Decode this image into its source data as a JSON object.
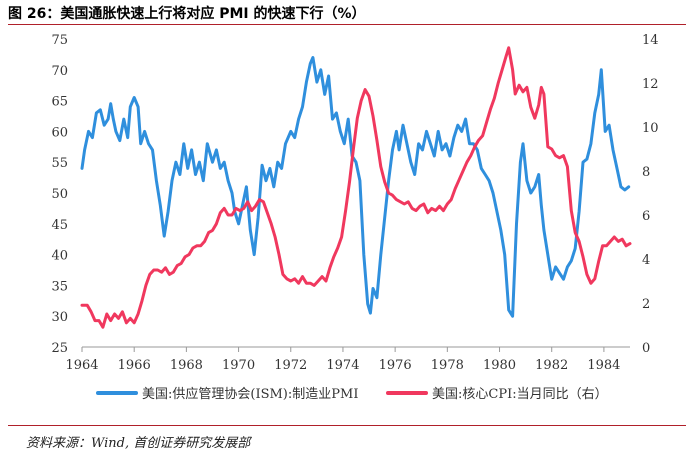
{
  "figure": {
    "title": "图 26：美国通胀快速上行将对应 PMI 的快速下行（%）",
    "source": "资料来源：Wind, 首创证券研究发展部"
  },
  "colors": {
    "pmi": "#2f8fdd",
    "cpi": "#f0385e",
    "axis": "#999999",
    "title_rule": "#b0202a"
  },
  "chart_data": {
    "type": "line",
    "title": "",
    "xlabel": "",
    "x_ticks": [
      "1964",
      "1966",
      "1968",
      "1970",
      "1972",
      "1974",
      "1976",
      "1978",
      "1980",
      "1982",
      "1984"
    ],
    "xlim": [
      1964,
      1985
    ],
    "left_axis": {
      "ylim": [
        25,
        75
      ],
      "ticks": [
        "25",
        "30",
        "35",
        "40",
        "45",
        "50",
        "55",
        "60",
        "65",
        "70",
        "75"
      ]
    },
    "right_axis": {
      "ylim": [
        0,
        14
      ],
      "ticks": [
        "0",
        "2",
        "4",
        "6",
        "8",
        "10",
        "12",
        "14"
      ]
    },
    "legend_position": "bottom",
    "series": [
      {
        "name": "美国:供应管理协会(ISM):制造业PMI",
        "axis": "left",
        "points": [
          [
            1964.0,
            54
          ],
          [
            1964.1,
            57
          ],
          [
            1964.25,
            60
          ],
          [
            1964.4,
            59
          ],
          [
            1964.55,
            63
          ],
          [
            1964.7,
            63.5
          ],
          [
            1964.85,
            61
          ],
          [
            1965.0,
            62
          ],
          [
            1965.1,
            64.5
          ],
          [
            1965.2,
            62
          ],
          [
            1965.3,
            60
          ],
          [
            1965.45,
            58.5
          ],
          [
            1965.6,
            62
          ],
          [
            1965.75,
            59
          ],
          [
            1965.85,
            64
          ],
          [
            1966.0,
            65.5
          ],
          [
            1966.15,
            64
          ],
          [
            1966.25,
            58
          ],
          [
            1966.4,
            60
          ],
          [
            1966.55,
            58
          ],
          [
            1966.7,
            57
          ],
          [
            1966.85,
            52
          ],
          [
            1967.0,
            48
          ],
          [
            1967.15,
            43
          ],
          [
            1967.3,
            47
          ],
          [
            1967.45,
            52
          ],
          [
            1967.6,
            55
          ],
          [
            1967.75,
            53
          ],
          [
            1967.9,
            58
          ],
          [
            1968.05,
            54
          ],
          [
            1968.2,
            57
          ],
          [
            1968.35,
            53
          ],
          [
            1968.5,
            55
          ],
          [
            1968.65,
            52
          ],
          [
            1968.8,
            58
          ],
          [
            1969.0,
            55
          ],
          [
            1969.15,
            57
          ],
          [
            1969.3,
            54
          ],
          [
            1969.45,
            55
          ],
          [
            1969.6,
            52
          ],
          [
            1969.75,
            50
          ],
          [
            1969.85,
            47
          ],
          [
            1970.0,
            45
          ],
          [
            1970.15,
            48
          ],
          [
            1970.3,
            51
          ],
          [
            1970.45,
            44
          ],
          [
            1970.6,
            40
          ],
          [
            1970.75,
            46
          ],
          [
            1970.9,
            54.5
          ],
          [
            1971.05,
            52
          ],
          [
            1971.2,
            54
          ],
          [
            1971.35,
            51
          ],
          [
            1971.5,
            55
          ],
          [
            1971.65,
            54
          ],
          [
            1971.8,
            58
          ],
          [
            1972.0,
            60
          ],
          [
            1972.15,
            59
          ],
          [
            1972.3,
            62
          ],
          [
            1972.45,
            64
          ],
          [
            1972.6,
            68
          ],
          [
            1972.75,
            71
          ],
          [
            1972.85,
            72
          ],
          [
            1973.0,
            68
          ],
          [
            1973.15,
            70
          ],
          [
            1973.3,
            66
          ],
          [
            1973.45,
            69
          ],
          [
            1973.6,
            62
          ],
          [
            1973.75,
            63
          ],
          [
            1973.9,
            60
          ],
          [
            1974.05,
            58
          ],
          [
            1974.2,
            62
          ],
          [
            1974.35,
            56
          ],
          [
            1974.5,
            55
          ],
          [
            1974.65,
            52
          ],
          [
            1974.8,
            40
          ],
          [
            1974.95,
            32
          ],
          [
            1975.05,
            30.5
          ],
          [
            1975.15,
            34.5
          ],
          [
            1975.3,
            33
          ],
          [
            1975.45,
            40
          ],
          [
            1975.6,
            46
          ],
          [
            1975.75,
            52
          ],
          [
            1975.9,
            57
          ],
          [
            1976.05,
            60
          ],
          [
            1976.15,
            57
          ],
          [
            1976.3,
            61
          ],
          [
            1976.45,
            58
          ],
          [
            1976.6,
            55
          ],
          [
            1976.75,
            53
          ],
          [
            1976.9,
            58
          ],
          [
            1977.05,
            57
          ],
          [
            1977.2,
            60
          ],
          [
            1977.35,
            58
          ],
          [
            1977.5,
            56
          ],
          [
            1977.65,
            60
          ],
          [
            1977.8,
            57
          ],
          [
            1977.95,
            58
          ],
          [
            1978.1,
            56
          ],
          [
            1978.25,
            59
          ],
          [
            1978.4,
            61
          ],
          [
            1978.55,
            60
          ],
          [
            1978.7,
            62
          ],
          [
            1978.85,
            58
          ],
          [
            1979.0,
            58
          ],
          [
            1979.15,
            57
          ],
          [
            1979.3,
            54
          ],
          [
            1979.45,
            53
          ],
          [
            1979.6,
            52
          ],
          [
            1979.75,
            50
          ],
          [
            1979.9,
            47
          ],
          [
            1980.05,
            44
          ],
          [
            1980.2,
            40
          ],
          [
            1980.35,
            31
          ],
          [
            1980.5,
            30
          ],
          [
            1980.65,
            45
          ],
          [
            1980.8,
            55
          ],
          [
            1980.9,
            58
          ],
          [
            1981.05,
            52
          ],
          [
            1981.2,
            50
          ],
          [
            1981.35,
            51
          ],
          [
            1981.5,
            53
          ],
          [
            1981.6,
            48
          ],
          [
            1981.7,
            44
          ],
          [
            1981.85,
            40
          ],
          [
            1982.0,
            36
          ],
          [
            1982.15,
            38
          ],
          [
            1982.3,
            37
          ],
          [
            1982.45,
            36
          ],
          [
            1982.6,
            38
          ],
          [
            1982.75,
            39
          ],
          [
            1982.9,
            41
          ],
          [
            1983.05,
            47
          ],
          [
            1983.2,
            55
          ],
          [
            1983.35,
            55.5
          ],
          [
            1983.5,
            58
          ],
          [
            1983.65,
            63
          ],
          [
            1983.8,
            66
          ],
          [
            1983.9,
            70
          ],
          [
            1984.05,
            60
          ],
          [
            1984.2,
            61
          ],
          [
            1984.35,
            57
          ],
          [
            1984.5,
            54
          ],
          [
            1984.65,
            51
          ],
          [
            1984.8,
            50.5
          ],
          [
            1984.95,
            51
          ]
        ]
      },
      {
        "name": "美国:核心CPI:当月同比（右）",
        "axis": "right",
        "points": [
          [
            1964.0,
            1.9
          ],
          [
            1964.2,
            1.9
          ],
          [
            1964.35,
            1.6
          ],
          [
            1964.5,
            1.2
          ],
          [
            1964.65,
            1.2
          ],
          [
            1964.8,
            0.9
          ],
          [
            1964.95,
            1.5
          ],
          [
            1965.1,
            1.2
          ],
          [
            1965.25,
            1.5
          ],
          [
            1965.4,
            1.3
          ],
          [
            1965.55,
            1.6
          ],
          [
            1965.7,
            1.1
          ],
          [
            1965.85,
            1.3
          ],
          [
            1966.0,
            1.1
          ],
          [
            1966.15,
            1.5
          ],
          [
            1966.3,
            2.1
          ],
          [
            1966.45,
            2.8
          ],
          [
            1966.6,
            3.3
          ],
          [
            1966.75,
            3.5
          ],
          [
            1966.9,
            3.5
          ],
          [
            1967.05,
            3.4
          ],
          [
            1967.2,
            3.6
          ],
          [
            1967.35,
            3.3
          ],
          [
            1967.5,
            3.4
          ],
          [
            1967.65,
            3.7
          ],
          [
            1967.8,
            3.8
          ],
          [
            1967.95,
            4.1
          ],
          [
            1968.1,
            4.2
          ],
          [
            1968.25,
            4.5
          ],
          [
            1968.4,
            4.6
          ],
          [
            1968.55,
            4.6
          ],
          [
            1968.7,
            4.8
          ],
          [
            1968.85,
            5.2
          ],
          [
            1969.0,
            5.3
          ],
          [
            1969.15,
            5.6
          ],
          [
            1969.3,
            6.1
          ],
          [
            1969.45,
            6.3
          ],
          [
            1969.6,
            6.0
          ],
          [
            1969.75,
            6.0
          ],
          [
            1969.9,
            6.3
          ],
          [
            1970.05,
            6.2
          ],
          [
            1970.2,
            6.3
          ],
          [
            1970.35,
            6.6
          ],
          [
            1970.5,
            6.2
          ],
          [
            1970.65,
            6.4
          ],
          [
            1970.8,
            6.7
          ],
          [
            1970.95,
            6.6
          ],
          [
            1971.1,
            6.1
          ],
          [
            1971.25,
            5.6
          ],
          [
            1971.4,
            5.0
          ],
          [
            1971.55,
            4.2
          ],
          [
            1971.7,
            3.3
          ],
          [
            1971.85,
            3.1
          ],
          [
            1972.0,
            3.0
          ],
          [
            1972.15,
            3.1
          ],
          [
            1972.3,
            2.9
          ],
          [
            1972.45,
            3.2
          ],
          [
            1972.6,
            2.9
          ],
          [
            1972.75,
            2.9
          ],
          [
            1972.9,
            2.8
          ],
          [
            1973.05,
            3.0
          ],
          [
            1973.2,
            3.2
          ],
          [
            1973.35,
            3.0
          ],
          [
            1973.5,
            3.6
          ],
          [
            1973.65,
            4.1
          ],
          [
            1973.8,
            4.5
          ],
          [
            1973.95,
            5.0
          ],
          [
            1974.1,
            6.2
          ],
          [
            1974.25,
            7.5
          ],
          [
            1974.4,
            9.0
          ],
          [
            1974.55,
            10.4
          ],
          [
            1974.7,
            11.2
          ],
          [
            1974.85,
            11.7
          ],
          [
            1975.0,
            11.4
          ],
          [
            1975.15,
            10.5
          ],
          [
            1975.3,
            9.4
          ],
          [
            1975.45,
            8.2
          ],
          [
            1975.6,
            7.5
          ],
          [
            1975.75,
            7.0
          ],
          [
            1975.9,
            6.9
          ],
          [
            1976.05,
            6.7
          ],
          [
            1976.2,
            6.6
          ],
          [
            1976.35,
            6.5
          ],
          [
            1976.5,
            6.6
          ],
          [
            1976.65,
            6.3
          ],
          [
            1976.8,
            6.2
          ],
          [
            1976.95,
            6.4
          ],
          [
            1977.1,
            6.5
          ],
          [
            1977.25,
            6.1
          ],
          [
            1977.4,
            6.3
          ],
          [
            1977.55,
            6.2
          ],
          [
            1977.7,
            6.4
          ],
          [
            1977.85,
            6.2
          ],
          [
            1978.0,
            6.5
          ],
          [
            1978.15,
            6.7
          ],
          [
            1978.3,
            7.2
          ],
          [
            1978.45,
            7.6
          ],
          [
            1978.6,
            8.0
          ],
          [
            1978.75,
            8.4
          ],
          [
            1978.9,
            8.7
          ],
          [
            1979.05,
            9.1
          ],
          [
            1979.2,
            9.4
          ],
          [
            1979.35,
            9.6
          ],
          [
            1979.5,
            10.2
          ],
          [
            1979.65,
            10.8
          ],
          [
            1979.8,
            11.3
          ],
          [
            1979.95,
            12.0
          ],
          [
            1980.1,
            12.6
          ],
          [
            1980.25,
            13.2
          ],
          [
            1980.35,
            13.6
          ],
          [
            1980.5,
            12.6
          ],
          [
            1980.6,
            11.5
          ],
          [
            1980.75,
            11.9
          ],
          [
            1980.9,
            11.6
          ],
          [
            1981.05,
            11.8
          ],
          [
            1981.2,
            10.9
          ],
          [
            1981.35,
            10.4
          ],
          [
            1981.5,
            11.0
          ],
          [
            1981.6,
            11.8
          ],
          [
            1981.7,
            11.5
          ],
          [
            1981.85,
            9.1
          ],
          [
            1982.0,
            9.0
          ],
          [
            1982.15,
            8.7
          ],
          [
            1982.3,
            8.6
          ],
          [
            1982.45,
            8.7
          ],
          [
            1982.6,
            8.2
          ],
          [
            1982.75,
            6.2
          ],
          [
            1982.9,
            5.2
          ],
          [
            1983.05,
            4.8
          ],
          [
            1983.2,
            4.1
          ],
          [
            1983.35,
            3.3
          ],
          [
            1983.5,
            2.9
          ],
          [
            1983.65,
            3.1
          ],
          [
            1983.8,
            3.9
          ],
          [
            1983.95,
            4.6
          ],
          [
            1984.1,
            4.6
          ],
          [
            1984.25,
            4.8
          ],
          [
            1984.4,
            5.0
          ],
          [
            1984.55,
            4.8
          ],
          [
            1984.7,
            4.9
          ],
          [
            1984.85,
            4.6
          ],
          [
            1985.0,
            4.7
          ]
        ]
      }
    ]
  }
}
